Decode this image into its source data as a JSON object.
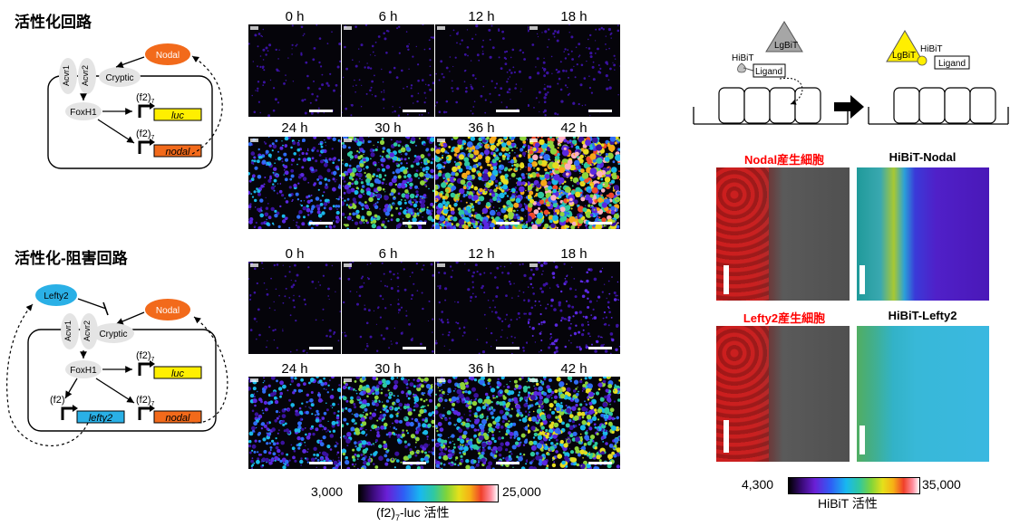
{
  "circuits": {
    "activation": {
      "title": "活性化回路",
      "acvr1": "Acvr1",
      "acvr2": "Acvr2",
      "cryptic": "Cryptic",
      "nodal": "Nodal",
      "foxh1": "FoxH1",
      "f2": "(f2)",
      "f2_sub": "7",
      "luc": "luc",
      "nodal_gene": "nodal"
    },
    "activation_inhibition": {
      "title": "活性化-阻害回路",
      "lefty2": "Lefty2",
      "acvr1": "Acvr1",
      "acvr2": "Acvr2",
      "cryptic": "Cryptic",
      "nodal": "Nodal",
      "foxh1": "FoxH1",
      "f2": "(f2)",
      "f2_sub": "7",
      "f2_plain": "(f2)",
      "luc": "luc",
      "lefty2_gene": "lefty2",
      "nodal_gene": "nodal"
    }
  },
  "timecourse": {
    "top": {
      "times": [
        "0 h",
        "6 h",
        "12 h",
        "18 h",
        "24 h",
        "30 h",
        "36 h",
        "42 h"
      ],
      "intensity": [
        0.05,
        0.06,
        0.07,
        0.12,
        0.38,
        0.6,
        0.8,
        0.95
      ]
    },
    "bottom": {
      "times": [
        "0 h",
        "6 h",
        "12 h",
        "18 h",
        "24 h",
        "30 h",
        "36 h",
        "42 h"
      ],
      "intensity": [
        0.04,
        0.05,
        0.08,
        0.18,
        0.42,
        0.55,
        0.62,
        0.68
      ]
    },
    "colorbar": {
      "min": "3,000",
      "max": "25,000",
      "label_main": "(f2)",
      "label_sub": "7",
      "label_rest": "-luc 活性"
    }
  },
  "hibit": {
    "schematic": {
      "lgbit": "LgBiT",
      "hibit": "HiBiT",
      "ligand": "Ligand"
    },
    "images": {
      "nodal_cells": "Nodal産生細胞",
      "hibit_nodal": "HiBiT-Nodal",
      "lefty2_cells": "Lefty2産生細胞",
      "hibit_lefty2": "HiBiT-Lefty2"
    },
    "colorbar": {
      "min": "4,300",
      "max": "35,000",
      "label": "HiBiT 活性"
    }
  },
  "colors": {
    "nodal_orange": "#f26a1b",
    "lefty_blue": "#2ab0e6",
    "luc_yellow": "#ffef00",
    "lgbit_grey": "#a6a6a6",
    "lgbit_yellow": "#ffef00",
    "receptor_grey": "#e4e4e4"
  }
}
